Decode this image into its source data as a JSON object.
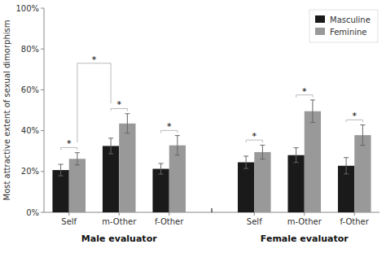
{
  "chart_data": {
    "type": "bar",
    "ylabel": "Most attractive extent of sexual dimorphism",
    "categories": [
      "Self",
      "m-Other",
      "f-Other",
      "Self",
      "m-Other",
      "f-Other"
    ],
    "group_labels": [
      "Male evaluator",
      "Female evaluator"
    ],
    "series": [
      {
        "name": "Masculine",
        "color": "#1a1a1a",
        "values": [
          0.207,
          0.325,
          0.213,
          0.245,
          0.28,
          0.228
        ],
        "errors": [
          0.028,
          0.038,
          0.026,
          0.03,
          0.036,
          0.04
        ]
      },
      {
        "name": "Feminine",
        "color": "#999999",
        "values": [
          0.262,
          0.435,
          0.328,
          0.295,
          0.495,
          0.378
        ],
        "errors": [
          0.03,
          0.048,
          0.048,
          0.034,
          0.055,
          0.05
        ]
      }
    ],
    "ylim": [
      0,
      1.0
    ],
    "yticks": [
      {
        "value": 0,
        "label": "0%"
      },
      {
        "value": 0.2,
        "label": "20%"
      },
      {
        "value": 0.4,
        "label": "40%"
      },
      {
        "value": 0.6,
        "label": "60%"
      },
      {
        "value": 0.8,
        "label": "80%"
      },
      {
        "value": 1.0,
        "label": "100%"
      }
    ],
    "grid": false,
    "legend": "upper right",
    "annotations": [
      {
        "text": "*",
        "color": "#bbbbbb",
        "y": 0.317,
        "from": [
          0,
          0
        ],
        "to": [
          0,
          1
        ]
      },
      {
        "text": "*",
        "color": "#bbbbbb",
        "y": 0.508,
        "from": [
          1,
          0
        ],
        "to": [
          1,
          1
        ]
      },
      {
        "text": "*",
        "color": "#bbbbbb",
        "y": 0.401,
        "from": [
          2,
          0
        ],
        "to": [
          2,
          1
        ]
      },
      {
        "text": "*",
        "color": "#bbbbbb",
        "y": 0.354,
        "from": [
          3,
          0
        ],
        "to": [
          3,
          1
        ]
      },
      {
        "text": "*",
        "color": "#bbbbbb",
        "y": 0.575,
        "from": [
          4,
          0
        ],
        "to": [
          4,
          1
        ]
      },
      {
        "text": "*",
        "color": "#bbbbbb",
        "y": 0.453,
        "from": [
          5,
          0
        ],
        "to": [
          5,
          1
        ]
      },
      {
        "text": "*",
        "color": "#bbbbbb",
        "y": 0.73,
        "from": [
          0,
          1
        ],
        "to": [
          1,
          0
        ],
        "from_y": 0.342,
        "to_y": 0.533
      }
    ]
  }
}
